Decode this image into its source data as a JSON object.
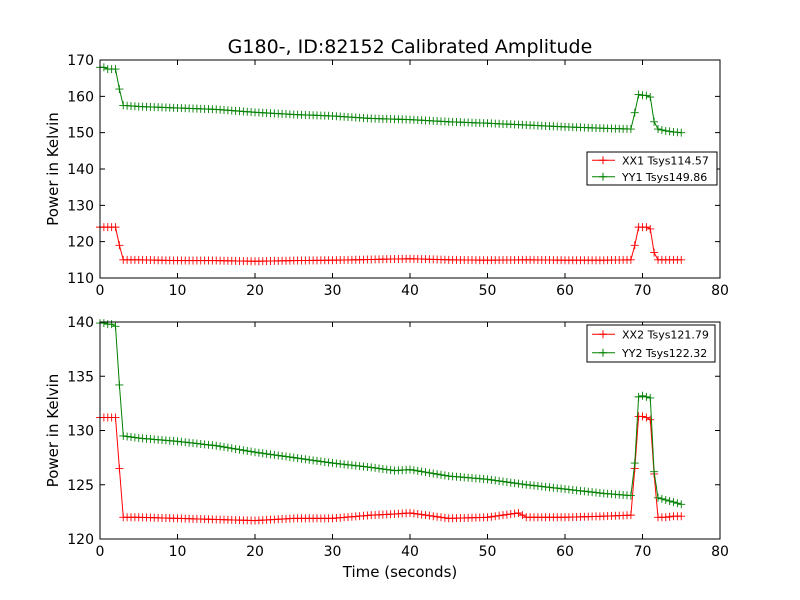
{
  "figure_title": "G180-, ID:82152 Calibrated Amplitude",
  "chart_data": [
    {
      "type": "line",
      "title": "G180-, ID:82152 Calibrated Amplitude",
      "xlabel": "",
      "ylabel": "Power in Kelvin",
      "xlim": [
        0,
        80
      ],
      "ylim": [
        110,
        170
      ],
      "xticks": [
        "0",
        "10",
        "20",
        "30",
        "40",
        "50",
        "60",
        "70",
        "80"
      ],
      "yticks": [
        "110",
        "120",
        "130",
        "140",
        "150",
        "160",
        "170"
      ],
      "xtick_values": [
        0,
        10,
        20,
        30,
        40,
        50,
        60,
        70,
        80
      ],
      "ytick_values": [
        110,
        120,
        130,
        140,
        150,
        160,
        170
      ],
      "legend_position": "center-right",
      "grid": false,
      "series": [
        {
          "name": "XX1 Tsys114.57",
          "color": "#ff0000",
          "x": [
            0,
            0.5,
            1.0,
            1.5,
            2.0,
            2.5,
            3.0,
            5,
            10,
            15,
            20,
            25,
            30,
            35,
            40,
            45,
            50,
            55,
            60,
            65,
            68.5,
            69.0,
            69.5,
            70.0,
            70.5,
            71.0,
            71.5,
            72.0,
            73,
            74,
            75
          ],
          "y": [
            124,
            124,
            124,
            124,
            124,
            119,
            115,
            115,
            114.8,
            114.8,
            114.6,
            114.8,
            114.9,
            115.1,
            115.3,
            115.0,
            114.9,
            115.0,
            114.9,
            114.9,
            115,
            119,
            124,
            124,
            124,
            123.5,
            117,
            115,
            115,
            115,
            115
          ]
        },
        {
          "name": "YY1 Tsys149.86",
          "color": "#008000",
          "x": [
            0,
            0.5,
            1.0,
            1.5,
            2.0,
            2.5,
            3.0,
            5,
            10,
            15,
            20,
            25,
            30,
            35,
            40,
            45,
            50,
            55,
            60,
            65,
            68.5,
            69.0,
            69.5,
            70.0,
            70.5,
            71.0,
            71.5,
            72.0,
            73,
            74,
            75
          ],
          "y": [
            168,
            168,
            167.5,
            167.5,
            167.5,
            162,
            157.5,
            157.2,
            156.8,
            156.4,
            155.6,
            155.0,
            154.6,
            153.9,
            153.6,
            153.0,
            152.6,
            152.1,
            151.6,
            151.2,
            151,
            155.5,
            160.5,
            160.3,
            160.2,
            159.8,
            153,
            151,
            150.5,
            150.2,
            150
          ]
        }
      ]
    },
    {
      "type": "line",
      "title": "",
      "xlabel": "Time (seconds)",
      "ylabel": "Power in Kelvin",
      "xlim": [
        0,
        80
      ],
      "ylim": [
        120,
        140
      ],
      "xticks": [
        "0",
        "10",
        "20",
        "30",
        "40",
        "50",
        "60",
        "70",
        "80"
      ],
      "yticks": [
        "120",
        "125",
        "130",
        "135",
        "140"
      ],
      "xtick_values": [
        0,
        10,
        20,
        30,
        40,
        50,
        60,
        70,
        80
      ],
      "ytick_values": [
        120,
        125,
        130,
        135,
        140
      ],
      "legend_position": "top-right",
      "grid": false,
      "series": [
        {
          "name": "XX2 Tsys121.79",
          "color": "#ff0000",
          "x": [
            0,
            0.5,
            1.0,
            1.5,
            2.0,
            2.5,
            3.0,
            5,
            10,
            15,
            20,
            25,
            30,
            35,
            38,
            40,
            45,
            50,
            54,
            55,
            60,
            65,
            68.5,
            69.0,
            69.5,
            70.0,
            70.5,
            71.0,
            71.5,
            72.0,
            73,
            74,
            75
          ],
          "y": [
            131.2,
            131.2,
            131.2,
            131.2,
            131.2,
            126.5,
            122,
            122,
            121.9,
            121.8,
            121.7,
            121.9,
            121.9,
            122.2,
            122.3,
            122.4,
            121.9,
            122.0,
            122.4,
            122.0,
            122.0,
            122.1,
            122.2,
            126.5,
            131.3,
            131.3,
            131.2,
            131.0,
            126,
            122,
            122,
            122.1,
            122.1
          ]
        },
        {
          "name": "YY2 Tsys122.32",
          "color": "#008000",
          "x": [
            0,
            0.5,
            1.0,
            1.5,
            2.0,
            2.5,
            3.0,
            5,
            10,
            15,
            20,
            25,
            30,
            35,
            38,
            40,
            45,
            50,
            55,
            60,
            65,
            68.5,
            69.0,
            69.5,
            70.0,
            70.5,
            71.0,
            71.5,
            72.0,
            73,
            74,
            75
          ],
          "y": [
            139.9,
            139.9,
            139.8,
            139.8,
            139.6,
            134.2,
            129.5,
            129.3,
            129.0,
            128.6,
            128.0,
            127.5,
            127.0,
            126.6,
            126.3,
            126.4,
            125.8,
            125.5,
            125.0,
            124.6,
            124.2,
            124.0,
            127.0,
            133.1,
            133.2,
            133.1,
            133.0,
            126.2,
            123.8,
            123.6,
            123.4,
            123.2
          ]
        }
      ]
    }
  ]
}
